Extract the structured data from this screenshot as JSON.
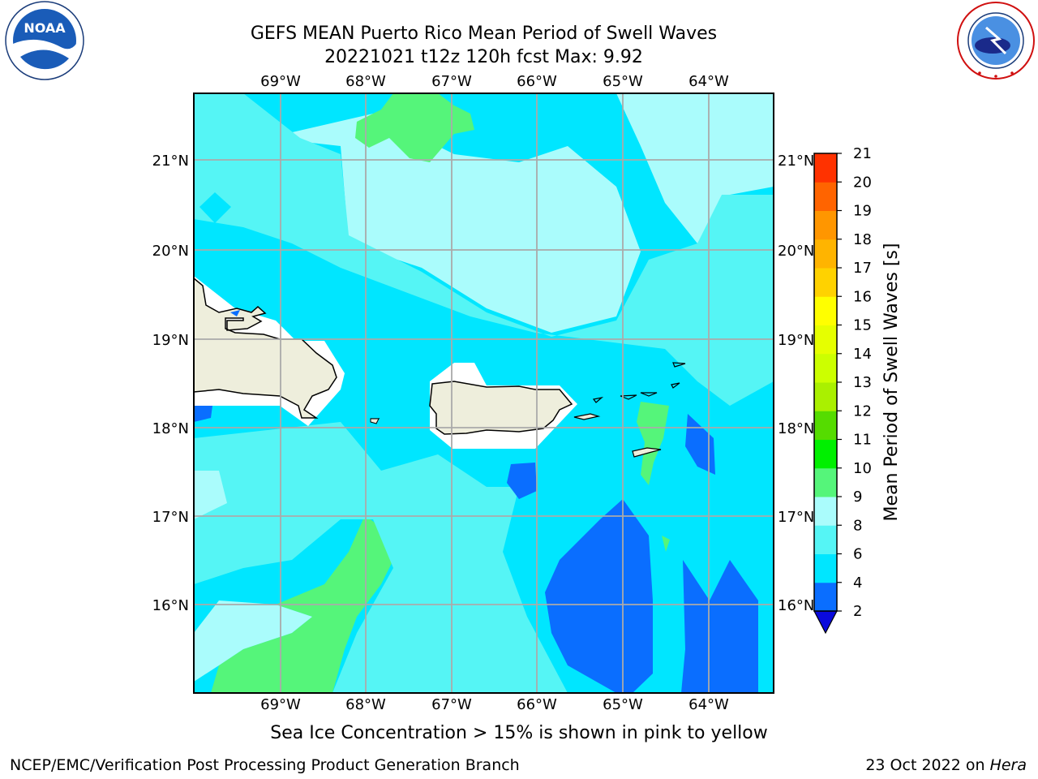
{
  "title": {
    "line1": "GEFS MEAN Puerto Rico Mean Period of Swell Waves",
    "line2": "20221021 t12z 120h fcst   Max: 9.92"
  },
  "logos": {
    "noaa": {
      "text": "NOAA",
      "ring_text": "NATIONAL OCEANIC AND ATMOSPHERIC ADMINISTRATION · U.S. DEPARTMENT OF COMMERCE"
    },
    "nws": {
      "ring_text": "NATIONAL WEATHER SERVICE"
    }
  },
  "map": {
    "lon_labels": [
      "69°W",
      "68°W",
      "67°W",
      "66°W",
      "65°W",
      "64°W"
    ],
    "lat_labels": [
      "21°N",
      "20°N",
      "19°N",
      "18°N",
      "17°N",
      "16°N"
    ],
    "lon_values": [
      -69,
      -68,
      -67,
      -66,
      -65,
      -64
    ],
    "lat_values": [
      21,
      20,
      19,
      18,
      17,
      16
    ],
    "extent": {
      "lon": [
        -70.0,
        -63.25
      ],
      "lat": [
        15.0,
        21.75
      ]
    },
    "colors": {
      "land": "#eeeedc",
      "grid": "#aaaaaa",
      "coast": "#000000"
    }
  },
  "colorbar": {
    "label": "Mean Period of Swell Waves [s]",
    "ticks": [
      "2",
      "4",
      "6",
      "8",
      "9",
      "10",
      "11",
      "12",
      "13",
      "14",
      "15",
      "16",
      "17",
      "18",
      "19",
      "20",
      "21"
    ],
    "colors": [
      "#0a0adc",
      "#0a6eff",
      "#00e6ff",
      "#55f5f5",
      "#aafcfc",
      "#55f57a",
      "#00f000",
      "#55dc00",
      "#aaf000",
      "#ccff00",
      "#e6ff00",
      "#ffff00",
      "#ffd200",
      "#ffb400",
      "#ff9600",
      "#ff6400",
      "#ff3200",
      "#ff0000"
    ]
  },
  "notes": {
    "ice": "Sea Ice Concentration > 15% is shown in pink to yellow"
  },
  "footer": {
    "left": "NCEP/EMC/Verification Post Processing Product Generation Branch",
    "right_date": "23 Oct 2022 on ",
    "right_host": "Hera"
  }
}
